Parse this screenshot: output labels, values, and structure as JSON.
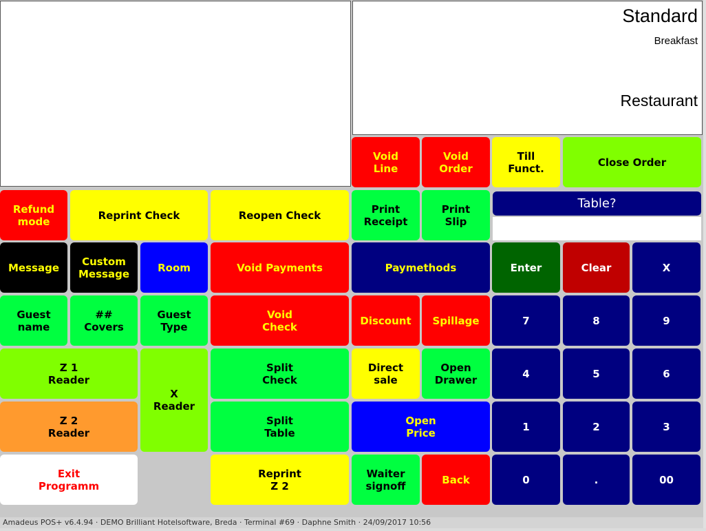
{
  "header": {
    "menu_title": "Standard",
    "menu_subtitle": "Breakfast",
    "outlet": "Restaurant"
  },
  "table_prompt": {
    "label": "Table?",
    "value": ""
  },
  "buttons": {
    "void_line": "Void\nLine",
    "void_order": "Void\nOrder",
    "till_funct": "Till\nFunct.",
    "close_order": "Close Order",
    "refund_mode": "Refund\nmode",
    "reprint_check": "Reprint Check",
    "reopen_check": "Reopen Check",
    "print_receipt": "Print\nReceipt",
    "print_slip": "Print\nSlip",
    "message": "Message",
    "custom_message": "Custom\nMessage",
    "room": "Room",
    "void_payments": "Void Payments",
    "paymethods": "Paymethods",
    "enter": "Enter",
    "clear": "Clear",
    "x": "X",
    "guest_name": "Guest\nname",
    "covers": "##\nCovers",
    "guest_type": "Guest\nType",
    "void_check": "Void\nCheck",
    "discount": "Discount",
    "spillage": "Spillage",
    "z1_reader": "Z 1\nReader",
    "x_reader": "X\nReader",
    "split_check": "Split\nCheck",
    "direct_sale": "Direct\nsale",
    "open_drawer": "Open\nDrawer",
    "z2_reader": "Z 2\nReader",
    "split_table": "Split\nTable",
    "open_price": "Open\nPrice",
    "exit_programm": "Exit\nProgramm",
    "reprint_z2": "Reprint\nZ 2",
    "waiter_signoff": "Waiter\nsignoff",
    "back": "Back"
  },
  "keypad": {
    "k7": "7",
    "k8": "8",
    "k9": "9",
    "k4": "4",
    "k5": "5",
    "k6": "6",
    "k1": "1",
    "k2": "2",
    "k3": "3",
    "k0": "0",
    "kdot": ".",
    "k00": "00"
  },
  "status_bar": "Amadeus POS+ v6.4.94 · DEMO Brilliant Hotelsoftware, Breda · Terminal #69 · Daphne Smith · 24/09/2017 10:56",
  "colors": {
    "navy": "#000080",
    "red": "#ff0000",
    "yellow": "#ffff00",
    "green": "#00ff40",
    "lime": "#80ff00",
    "dark_green": "#006400",
    "dark_red": "#c00000",
    "orange": "#ff9a2e",
    "blue": "#0000ff",
    "black": "#000000"
  }
}
